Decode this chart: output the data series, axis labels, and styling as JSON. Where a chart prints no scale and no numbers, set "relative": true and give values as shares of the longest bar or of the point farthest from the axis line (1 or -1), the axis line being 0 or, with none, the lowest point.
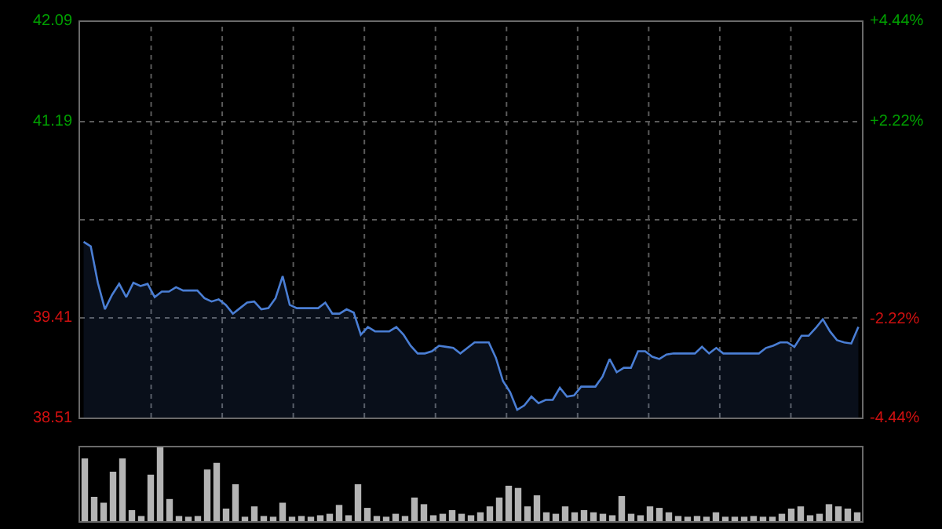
{
  "chart_data": [
    {
      "type": "area",
      "color": "#4a7ed4",
      "categories": [
        null,
        null,
        null,
        null,
        null,
        null,
        null,
        null,
        null,
        null,
        null,
        null,
        null,
        null,
        null,
        null,
        null,
        null,
        null,
        null,
        null,
        null,
        null,
        null,
        null,
        null,
        null,
        null,
        null,
        null,
        null,
        null,
        null,
        null,
        null,
        null,
        null,
        null,
        null,
        null,
        null,
        null,
        null,
        null,
        null,
        null,
        null,
        null,
        null,
        null,
        null,
        null,
        null,
        null,
        null,
        null,
        null,
        null,
        null,
        null,
        null,
        null,
        null,
        null,
        null,
        null,
        null,
        null,
        null,
        null,
        null,
        null,
        null,
        null,
        null,
        null,
        null,
        null,
        null,
        null,
        null,
        null,
        null,
        null,
        null,
        null,
        null,
        null,
        null,
        null,
        null,
        null,
        null,
        null,
        null,
        null,
        null,
        null,
        null,
        null,
        null,
        null,
        null,
        null,
        null,
        null,
        null,
        null,
        null,
        null
      ],
      "values": [
        40.1,
        40.06,
        39.73,
        39.49,
        39.62,
        39.72,
        39.6,
        39.73,
        39.7,
        39.72,
        39.6,
        39.65,
        39.65,
        39.69,
        39.66,
        39.66,
        39.66,
        39.59,
        39.56,
        39.58,
        39.53,
        39.45,
        39.5,
        39.55,
        39.56,
        39.49,
        39.5,
        39.59,
        39.79,
        39.53,
        39.5,
        39.5,
        39.5,
        39.5,
        39.55,
        39.45,
        39.45,
        39.49,
        39.46,
        39.26,
        39.33,
        39.29,
        39.29,
        39.29,
        39.33,
        39.26,
        39.16,
        39.09,
        39.09,
        39.11,
        39.16,
        39.15,
        39.14,
        39.09,
        39.14,
        39.19,
        39.19,
        39.19,
        39.05,
        38.84,
        38.74,
        38.58,
        38.62,
        38.7,
        38.64,
        38.67,
        38.67,
        38.78,
        38.7,
        38.71,
        38.79,
        38.79,
        38.79,
        38.88,
        39.04,
        38.92,
        38.96,
        38.96,
        39.11,
        39.11,
        39.06,
        39.04,
        39.08,
        39.09,
        39.09,
        39.09,
        39.09,
        39.15,
        39.09,
        39.14,
        39.09,
        39.09,
        39.09,
        39.09,
        39.09,
        39.09,
        39.14,
        39.16,
        39.19,
        39.19,
        39.15,
        39.25,
        39.25,
        39.32,
        39.4,
        39.29,
        39.21,
        39.19,
        39.18,
        39.33
      ],
      "ylim": [
        38.51,
        42.09
      ],
      "yticks": [
        42.09,
        41.19,
        {
          "value": 40.3,
          "label": null
        },
        39.41,
        38.51
      ],
      "y2lim": [
        -4.44,
        4.44
      ],
      "y2ticks": [
        {
          "value": 4.44,
          "label": "+4.44%"
        },
        {
          "value": 2.22,
          "label": "+2.22%"
        },
        {
          "value": 0,
          "label": null
        },
        {
          "value": -2.22,
          "label": "-2.22%"
        },
        {
          "value": -4.44,
          "label": "-4.44%"
        }
      ],
      "grid": true,
      "tick_labels": "y",
      "line_style": "solid"
    },
    {
      "type": "bar",
      "relative": true,
      "color": "#b4b4b4",
      "categories": [
        null,
        null,
        null,
        null,
        null,
        null,
        null,
        null,
        null,
        null,
        null,
        null,
        null,
        null,
        null,
        null,
        null,
        null,
        null,
        null,
        null,
        null,
        null,
        null,
        null,
        null,
        null,
        null,
        null,
        null,
        null,
        null,
        null,
        null,
        null,
        null,
        null,
        null,
        null,
        null,
        null,
        null,
        null,
        null,
        null,
        null,
        null,
        null,
        null,
        null,
        null,
        null,
        null,
        null,
        null,
        null,
        null,
        null,
        null,
        null,
        null,
        null,
        null,
        null,
        null,
        null,
        null,
        null,
        null,
        null,
        null,
        null,
        null,
        null,
        null,
        null,
        null,
        null,
        null,
        null,
        null,
        null,
        null
      ],
      "values": [
        0.85,
        0.33,
        0.25,
        0.67,
        0.85,
        0.15,
        0.07,
        0.63,
        1,
        0.3,
        0.07,
        0.06,
        0.07,
        0.7,
        0.79,
        0.17,
        0.5,
        0.06,
        0.2,
        0.07,
        0.06,
        0.25,
        0.06,
        0.07,
        0.06,
        0.08,
        0.1,
        0.22,
        0.08,
        0.5,
        0.18,
        0.07,
        0.06,
        0.1,
        0.07,
        0.32,
        0.23,
        0.08,
        0.1,
        0.15,
        0.1,
        0.08,
        0.12,
        0.2,
        0.32,
        0.48,
        0.45,
        0.2,
        0.35,
        0.12,
        0.1,
        0.2,
        0.12,
        0.15,
        0.12,
        0.1,
        0.08,
        0.34,
        0.1,
        0.08,
        0.2,
        0.18,
        0.12,
        0.07,
        0.06,
        0.07,
        0.06,
        0.12,
        0.06,
        0.06,
        0.06,
        0.07,
        0.06,
        0.06,
        0.1,
        0.17,
        0.2,
        0.08,
        0.1,
        0.23,
        0.2,
        0.17,
        0.12
      ]
    }
  ]
}
